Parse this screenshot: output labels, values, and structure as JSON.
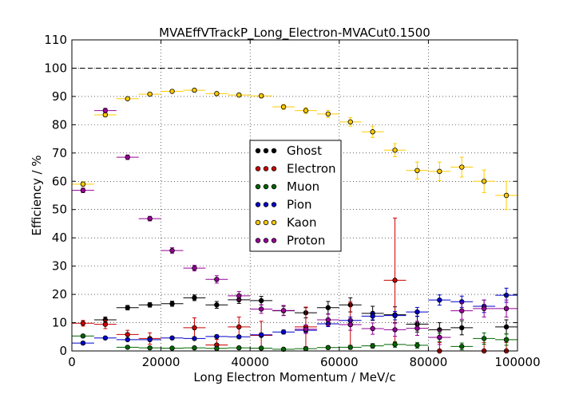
{
  "chart_data": {
    "type": "scatter",
    "title": "MVAEffVTrackP_Long_Electron-MVACut0.1500",
    "xlabel": "Long Electron Momentum / MeV/c",
    "ylabel": "Efficiency / %",
    "xlim": [
      0,
      100000
    ],
    "ylim": [
      0,
      110
    ],
    "xticks": [
      0,
      20000,
      40000,
      60000,
      80000,
      100000
    ],
    "yticks": [
      0,
      10,
      20,
      30,
      40,
      50,
      60,
      70,
      80,
      90,
      100,
      110
    ],
    "grid": true,
    "reference_line": 100,
    "legend_position": "center",
    "x": [
      2500,
      7500,
      12500,
      17500,
      22500,
      27500,
      32500,
      37500,
      42500,
      47500,
      52500,
      57500,
      62500,
      67500,
      72500,
      77500,
      82500,
      87500,
      92500,
      97500
    ],
    "series": [
      {
        "name": "Ghost",
        "color": "#000000",
        "values": [
          null,
          11,
          15.3,
          16.3,
          16.7,
          18.8,
          16.3,
          18.1,
          17.8,
          14.2,
          13.5,
          15.3,
          16.3,
          13.3,
          12.8,
          9.5,
          7.5,
          8.2,
          null,
          8.5
        ],
        "errors": [
          null,
          1,
          0.8,
          0.8,
          0.9,
          1,
          1.2,
          1.3,
          1.5,
          1.6,
          1.8,
          2.2,
          2.5,
          2.5,
          2.8,
          2.8,
          2.5,
          2.5,
          null,
          2.5
        ]
      },
      {
        "name": "Electron",
        "color": "#cc0000",
        "values": [
          9.8,
          9.4,
          5.8,
          4.4,
          null,
          8.2,
          2.1,
          8.5,
          5.5,
          null,
          8.5,
          null,
          9.3,
          null,
          25,
          null,
          0,
          null,
          0,
          0
        ],
        "errors": [
          1,
          1.5,
          1.5,
          2,
          null,
          3.5,
          2,
          3.5,
          5,
          null,
          7,
          null,
          8,
          null,
          22,
          null,
          3,
          null,
          3,
          3
        ]
      },
      {
        "name": "Muon",
        "color": "#006600",
        "values": [
          5.3,
          null,
          1.3,
          1.1,
          1,
          1.1,
          0.9,
          1.1,
          1,
          0.6,
          0.8,
          1.2,
          1.3,
          1.8,
          2.3,
          2,
          4.8,
          1.6,
          4.4,
          4
        ],
        "errors": [
          0.5,
          null,
          0.3,
          0.3,
          0.3,
          0.3,
          0.3,
          0.4,
          0.4,
          0.4,
          0.5,
          0.6,
          0.7,
          0.8,
          1,
          1,
          1.5,
          1.2,
          2,
          2
        ]
      },
      {
        "name": "Pion",
        "color": "#0000cc",
        "values": [
          2.8,
          4.6,
          4,
          4,
          4.6,
          4.4,
          5.1,
          5,
          5.7,
          6.7,
          7.3,
          9.6,
          10.8,
          12.3,
          12.5,
          13.8,
          18,
          17.4,
          15.8,
          19.7
        ],
        "errors": [
          0.3,
          0.3,
          0.3,
          0.3,
          0.4,
          0.4,
          0.5,
          0.5,
          0.6,
          0.7,
          0.8,
          1,
          1.2,
          1.3,
          1.5,
          1.6,
          1.8,
          2,
          2.2,
          2.5
        ]
      },
      {
        "name": "Kaon",
        "color": "#ffcc00",
        "values": [
          59,
          83.5,
          89.2,
          90.8,
          91.8,
          92.2,
          91,
          90.5,
          90.2,
          86.3,
          85,
          83.8,
          81,
          77.5,
          71,
          63.8,
          63.5,
          65,
          60,
          55
        ],
        "errors": [
          0.8,
          0.7,
          0.5,
          0.5,
          0.5,
          0.5,
          0.6,
          0.6,
          0.7,
          0.9,
          1,
          1.3,
          1.5,
          2,
          2.3,
          3,
          3.3,
          3.5,
          4,
          5
        ]
      },
      {
        "name": "Proton",
        "color": "#990099",
        "values": [
          56.8,
          85,
          68.5,
          46.8,
          35.5,
          29.3,
          25.3,
          19.5,
          14.8,
          14.3,
          7.7,
          11,
          9.3,
          7.9,
          7.5,
          8,
          4.8,
          14.2,
          15,
          15
        ],
        "errors": [
          0.8,
          0.8,
          0.8,
          0.8,
          1,
          1,
          1.3,
          1.5,
          1.5,
          1.8,
          1.5,
          2,
          2,
          2,
          2.3,
          2.5,
          2.5,
          3,
          3,
          3
        ]
      }
    ]
  }
}
